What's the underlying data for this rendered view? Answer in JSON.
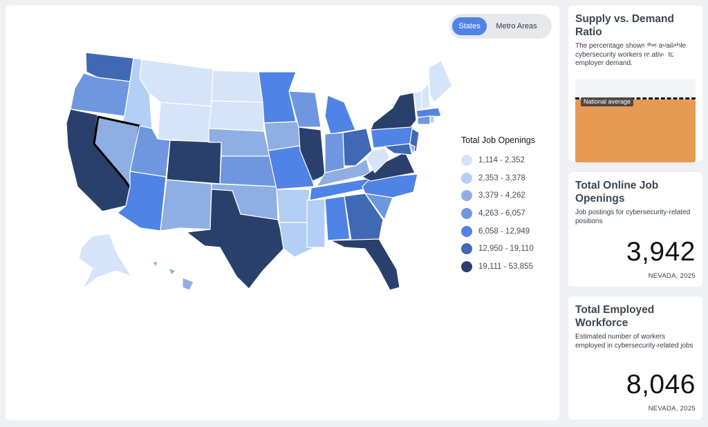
{
  "toggle": {
    "states_label": "States",
    "metro_label": "Metro Areas",
    "active": "States"
  },
  "legend": {
    "title": "Total Job Openings",
    "items": [
      {
        "label": "1,114 - 2,352",
        "color": "#d6e4fa"
      },
      {
        "label": "2,353 - 3,378",
        "color": "#b3cff5"
      },
      {
        "label": "3,379 - 4,262",
        "color": "#8faee3"
      },
      {
        "label": "4,263 - 6,057",
        "color": "#6e97e0"
      },
      {
        "label": "6,058 - 12,949",
        "color": "#4f83e6"
      },
      {
        "label": "12,950 - 19,110",
        "color": "#3f68b5"
      },
      {
        "label": "19,111 - 53,855",
        "color": "#28406b"
      }
    ]
  },
  "map": {
    "selected_state": "Nevada"
  },
  "supply_card": {
    "title": "Supply vs. Demand Ratio",
    "description": "The percentage shows the available cybersecurity workers relative to employer demand.",
    "national_label": "National average",
    "value": "71%",
    "ratio_fraction": 0.71,
    "location": "NEVADA, 2025",
    "accent": "#e79a54"
  },
  "openings_card": {
    "title": "Total Online Job Openings",
    "description": "Job postings for cybersecurity-related positions",
    "value": "3,942",
    "location": "NEVADA, 2025"
  },
  "workforce_card": {
    "title": "Total Employed Workforce",
    "description": "Estimated number of workers employed in cybersecurity-related jobs",
    "value": "8,046",
    "location": "NEVADA, 2025"
  }
}
